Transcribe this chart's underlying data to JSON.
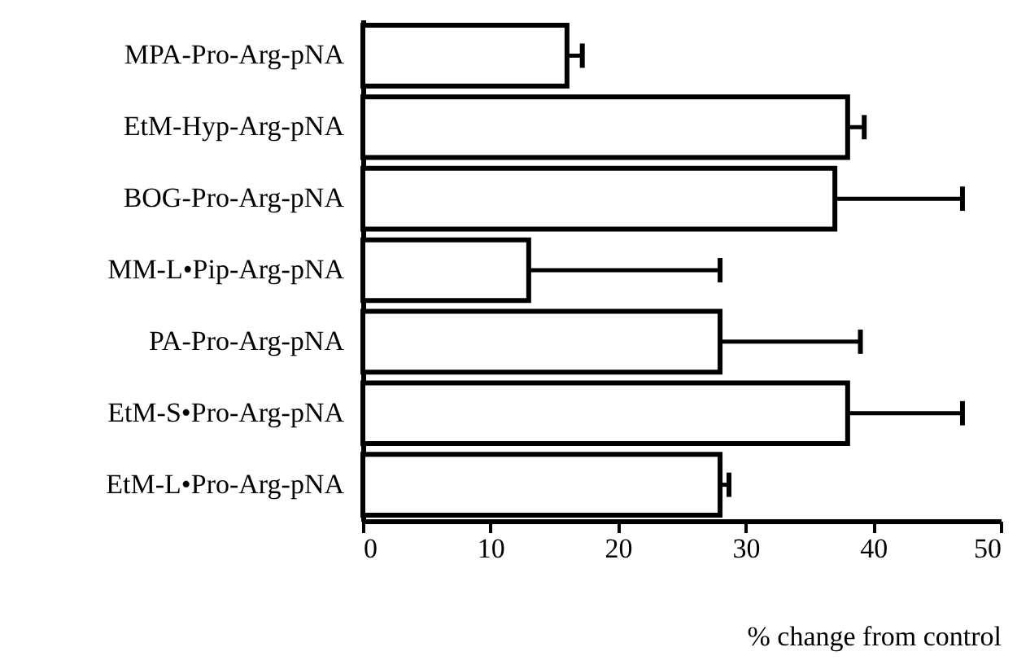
{
  "chart_data": {
    "type": "bar",
    "orientation": "horizontal",
    "xlabel": "% change from control",
    "categories": [
      "MPA-Pro-Arg-pNA",
      "EtM-Hyp-Arg-pNA",
      "BOG-Pro-Arg-pNA",
      "MM-L•Pip-Arg-pNA",
      "PA-Pro-Arg-pNA",
      "EtM-S•Pro-Arg-pNA",
      "EtM-L•Pro-Arg-pNA"
    ],
    "values": [
      16,
      38,
      37,
      13,
      28,
      38,
      28
    ],
    "errors": [
      [
        16,
        17.2
      ],
      [
        38,
        39.3
      ],
      [
        37,
        47
      ],
      [
        13,
        28
      ],
      [
        28,
        39
      ],
      [
        38,
        47
      ],
      [
        28,
        28.7
      ]
    ],
    "color": "#ffffff",
    "xlim": [
      0,
      50
    ],
    "xticks": [
      0,
      10,
      20,
      30,
      40,
      50
    ],
    "grid": false
  }
}
